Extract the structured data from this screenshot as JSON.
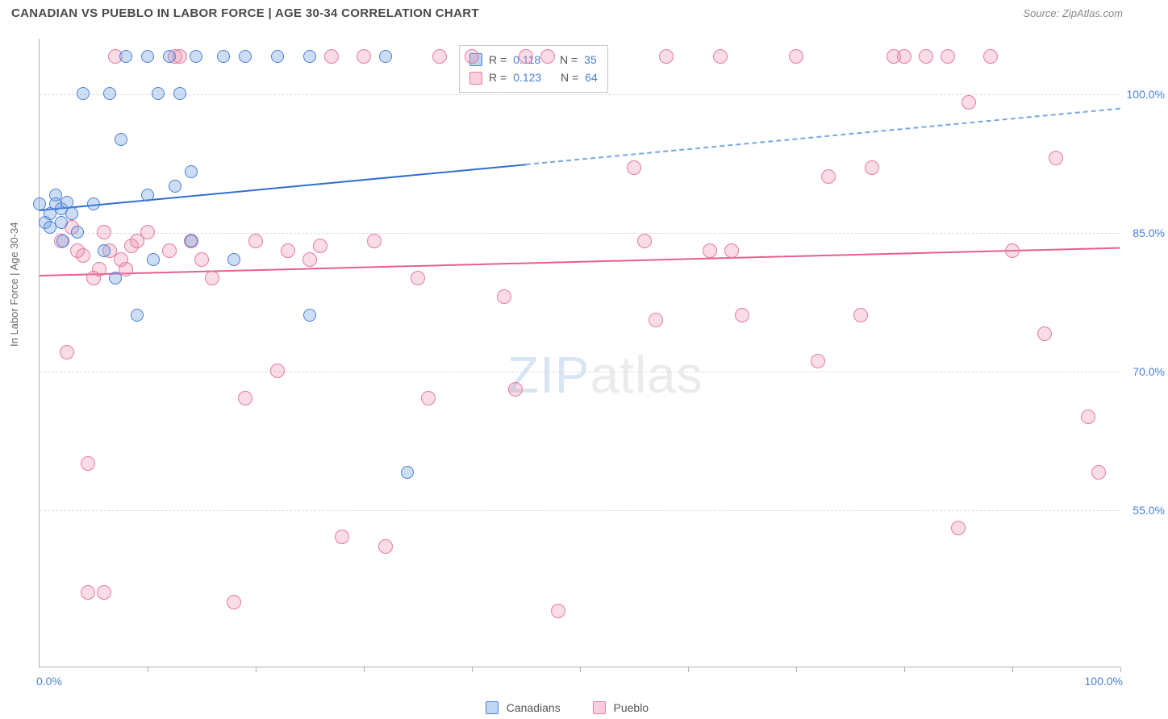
{
  "title": "CANADIAN VS PUEBLO IN LABOR FORCE | AGE 30-34 CORRELATION CHART",
  "source": "Source: ZipAtlas.com",
  "ylabel": "In Labor Force | Age 30-34",
  "watermark_a": "ZIP",
  "watermark_b": "atlas",
  "chart": {
    "type": "scatter",
    "background_color": "#ffffff",
    "grid_color": "#dcdcdc",
    "axis_color": "#b0b0b0",
    "label_color": "#4a7fd8",
    "xlim": [
      0,
      100
    ],
    "ylim": [
      38,
      106
    ],
    "x_axis": {
      "min_label": "0.0%",
      "max_label": "100.0%",
      "tick_positions": [
        10,
        20,
        30,
        40,
        50,
        60,
        70,
        80,
        90,
        100
      ]
    },
    "y_axis": {
      "gridlines": [
        {
          "value": 55,
          "label": "55.0%"
        },
        {
          "value": 70,
          "label": "70.0%"
        },
        {
          "value": 85,
          "label": "85.0%"
        },
        {
          "value": 100,
          "label": "100.0%"
        }
      ]
    },
    "series": {
      "canadians": {
        "label": "Canadians",
        "fill_color": "rgba(112,161,224,0.35)",
        "stroke_color": "#4a7fd8",
        "marker_radius": 8,
        "R": "0.118",
        "N": "35",
        "trend": {
          "start": [
            0,
            87.5
          ],
          "end": [
            100,
            98.5
          ],
          "solid_until_x": 45,
          "solid_color": "#2f6fd0",
          "dash_color": "#7aa6e0",
          "line_width": 2.5
        },
        "points": [
          [
            0,
            88
          ],
          [
            0.5,
            86
          ],
          [
            1,
            87
          ],
          [
            1,
            85.5
          ],
          [
            1.5,
            89
          ],
          [
            1.5,
            88
          ],
          [
            2,
            86
          ],
          [
            2,
            87.5
          ],
          [
            2.2,
            84
          ],
          [
            2.5,
            88.2
          ],
          [
            3,
            87
          ],
          [
            3.5,
            85
          ],
          [
            4,
            100
          ],
          [
            5,
            88
          ],
          [
            6,
            83
          ],
          [
            6.5,
            100
          ],
          [
            7,
            80
          ],
          [
            7.5,
            95
          ],
          [
            8,
            104
          ],
          [
            9,
            76
          ],
          [
            10,
            89
          ],
          [
            10,
            104
          ],
          [
            10.5,
            82
          ],
          [
            11,
            100
          ],
          [
            12,
            104
          ],
          [
            12.5,
            90
          ],
          [
            13,
            100
          ],
          [
            14,
            84
          ],
          [
            14,
            91.5
          ],
          [
            14.5,
            104
          ],
          [
            17,
            104
          ],
          [
            18,
            82
          ],
          [
            19,
            104
          ],
          [
            22,
            104
          ],
          [
            25,
            76
          ],
          [
            25,
            104
          ],
          [
            32,
            104
          ],
          [
            34,
            59
          ]
        ]
      },
      "pueblo": {
        "label": "Pueblo",
        "fill_color": "rgba(240,140,170,0.30)",
        "stroke_color": "#e77aa0",
        "marker_radius": 9,
        "R": "0.123",
        "N": "64",
        "trend": {
          "start": [
            0,
            80.5
          ],
          "end": [
            100,
            83.5
          ],
          "solid_until_x": 100,
          "solid_color": "#e65f8d",
          "line_width": 2.5
        },
        "points": [
          [
            2,
            84
          ],
          [
            2.5,
            72
          ],
          [
            3,
            85.5
          ],
          [
            3.5,
            83
          ],
          [
            4,
            82.5
          ],
          [
            4.5,
            60
          ],
          [
            4.5,
            46
          ],
          [
            5,
            80
          ],
          [
            5.5,
            81
          ],
          [
            6,
            85
          ],
          [
            6,
            46
          ],
          [
            6.5,
            83
          ],
          [
            7,
            104
          ],
          [
            7.5,
            82
          ],
          [
            8,
            81
          ],
          [
            8.5,
            83.5
          ],
          [
            9,
            84
          ],
          [
            10,
            85
          ],
          [
            12,
            83
          ],
          [
            12.5,
            104
          ],
          [
            13,
            104
          ],
          [
            14,
            84
          ],
          [
            15,
            82
          ],
          [
            16,
            80
          ],
          [
            18,
            45
          ],
          [
            19,
            67
          ],
          [
            20,
            84
          ],
          [
            22,
            70
          ],
          [
            23,
            83
          ],
          [
            25,
            82
          ],
          [
            26,
            83.5
          ],
          [
            27,
            104
          ],
          [
            28,
            52
          ],
          [
            30,
            104
          ],
          [
            31,
            84
          ],
          [
            32,
            51
          ],
          [
            35,
            80
          ],
          [
            36,
            67
          ],
          [
            37,
            104
          ],
          [
            40,
            104
          ],
          [
            43,
            78
          ],
          [
            44,
            68
          ],
          [
            45,
            104
          ],
          [
            47,
            104
          ],
          [
            48,
            44
          ],
          [
            55,
            92
          ],
          [
            56,
            84
          ],
          [
            57,
            75.5
          ],
          [
            58,
            104
          ],
          [
            62,
            83
          ],
          [
            63,
            104
          ],
          [
            64,
            83
          ],
          [
            65,
            76
          ],
          [
            70,
            104
          ],
          [
            72,
            71
          ],
          [
            73,
            91
          ],
          [
            76,
            76
          ],
          [
            77,
            92
          ],
          [
            79,
            104
          ],
          [
            80,
            104
          ],
          [
            82,
            104
          ],
          [
            84,
            104
          ],
          [
            85,
            53
          ],
          [
            86,
            99
          ],
          [
            88,
            104
          ],
          [
            90,
            83
          ],
          [
            93,
            74
          ],
          [
            94,
            93
          ],
          [
            97,
            65
          ],
          [
            98,
            59
          ]
        ]
      }
    }
  },
  "legend_top": {
    "r_label": "R =",
    "n_label": "N ="
  }
}
